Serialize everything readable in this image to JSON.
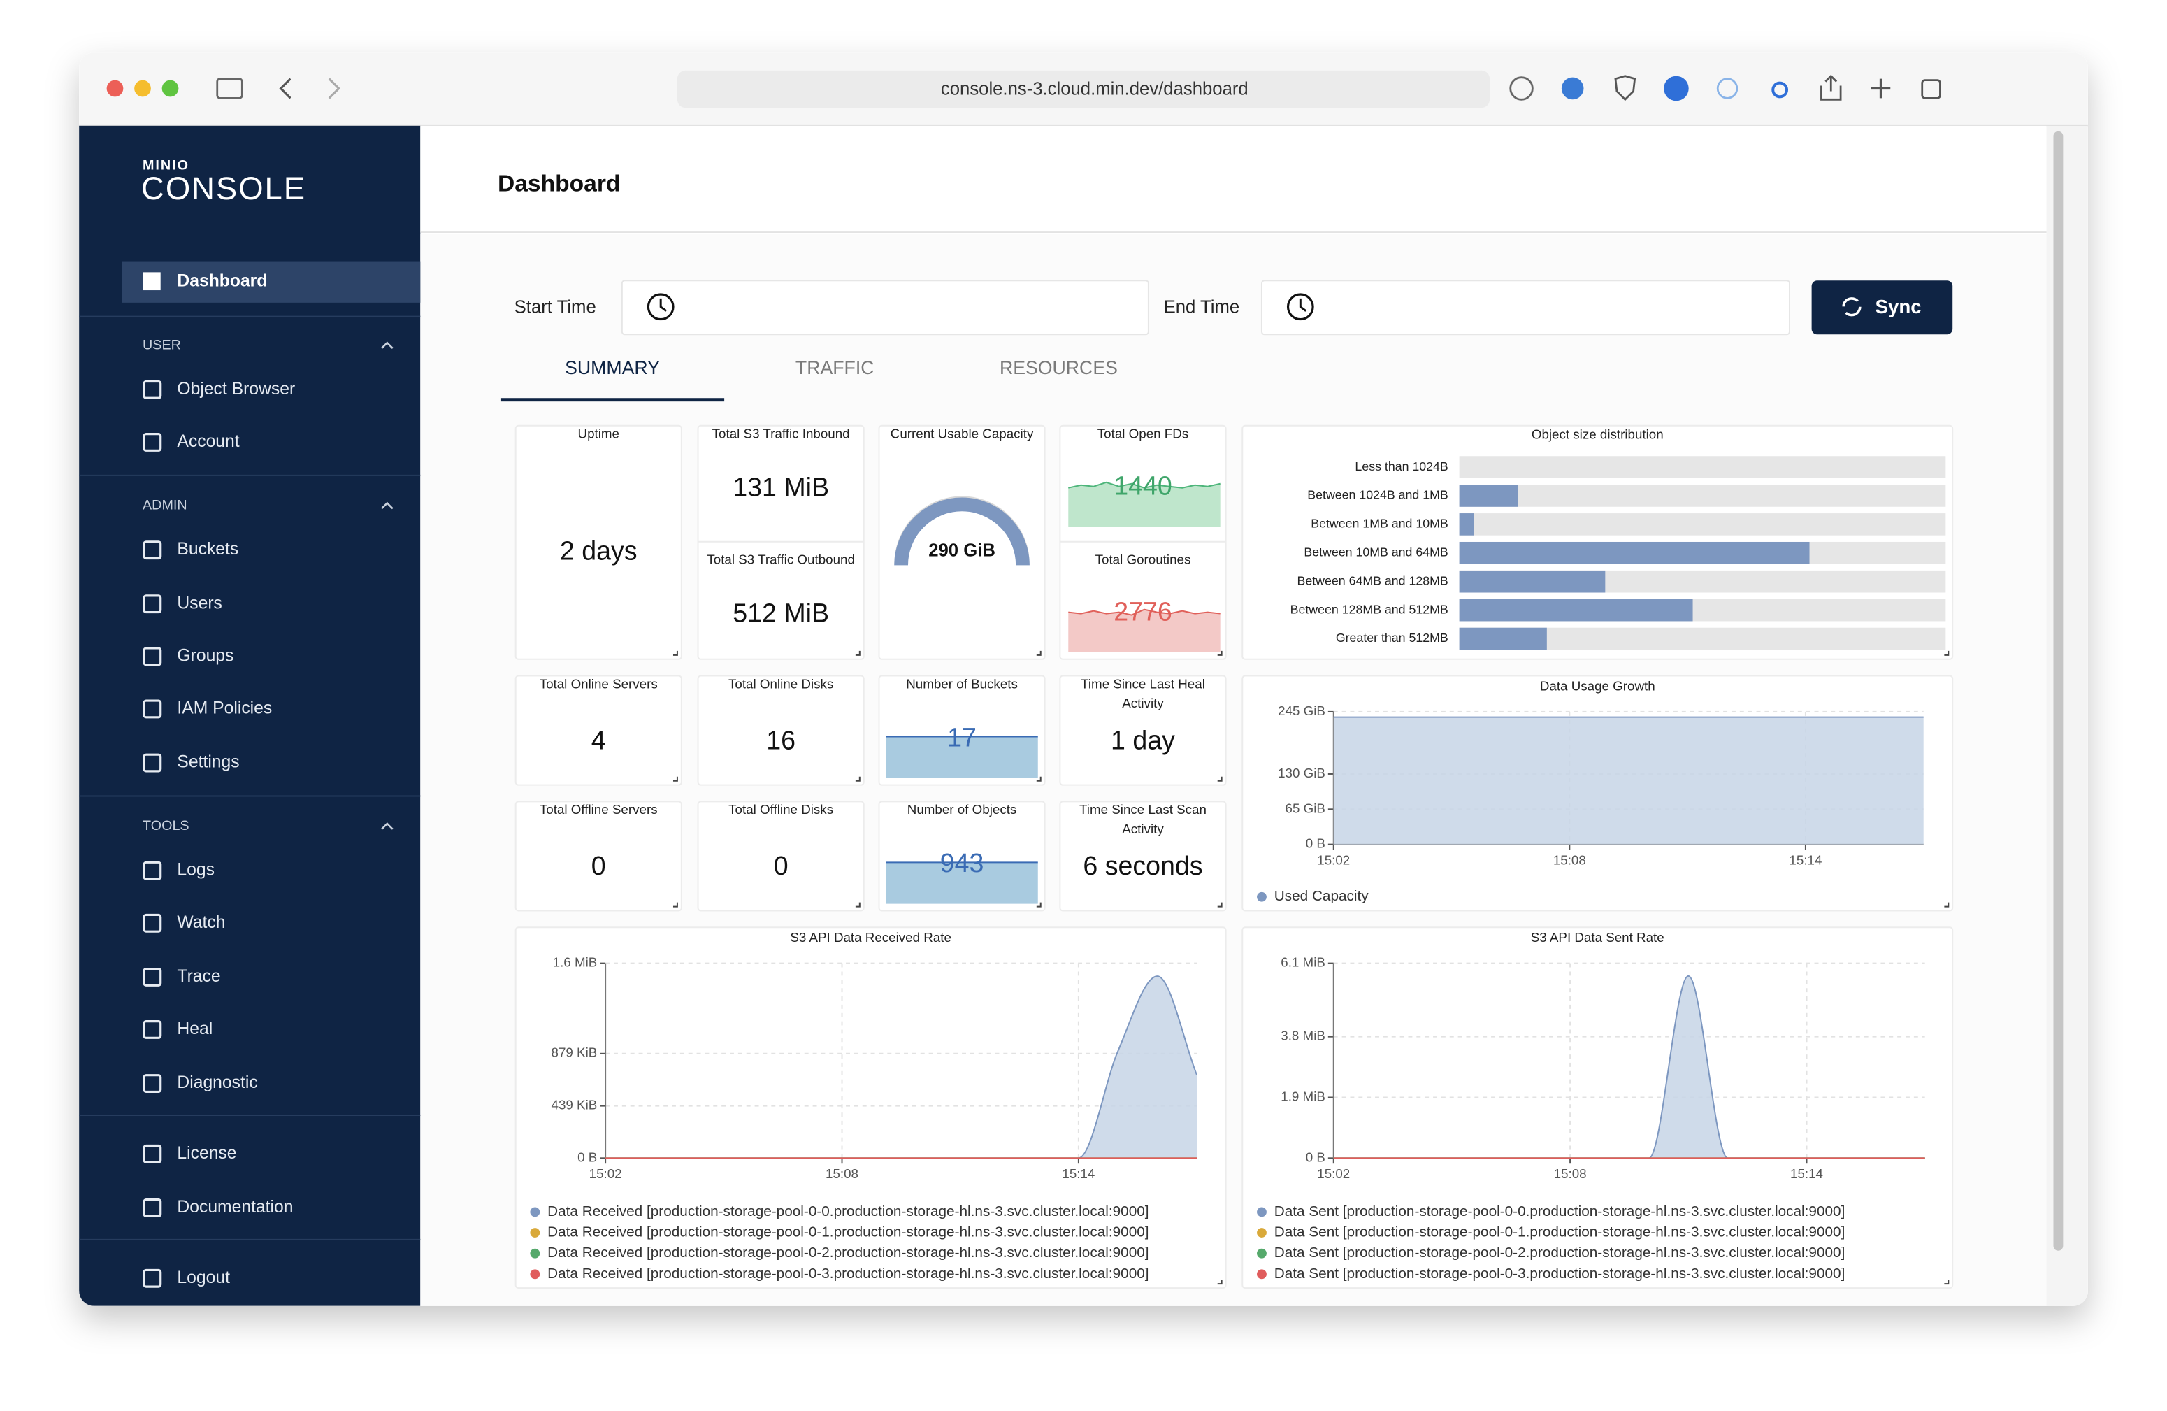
{
  "browser": {
    "url": "console.ns-3.cloud.min.dev/dashboard"
  },
  "sidebar": {
    "logo_brand": "MINIO",
    "logo_product": "CONSOLE",
    "active": "Dashboard",
    "sections": [
      {
        "title": "USER",
        "items": [
          "Object Browser",
          "Account"
        ]
      },
      {
        "title": "ADMIN",
        "items": [
          "Buckets",
          "Users",
          "Groups",
          "IAM Policies",
          "Settings"
        ]
      },
      {
        "title": "TOOLS",
        "items": [
          "Logs",
          "Watch",
          "Trace",
          "Heal",
          "Diagnostic"
        ]
      }
    ],
    "bottom": [
      "License",
      "Documentation"
    ],
    "logout": "Logout"
  },
  "header": {
    "title": "Dashboard"
  },
  "filters": {
    "start_label": "Start Time",
    "end_label": "End Time",
    "sync": "Sync"
  },
  "tabs": {
    "items": [
      "SUMMARY",
      "TRAFFIC",
      "RESOURCES"
    ],
    "active": "SUMMARY"
  },
  "cards": [
    {
      "title": "Uptime",
      "value": "2 days"
    },
    {
      "title": "Total S3 Traffic Inbound",
      "value": "131 MiB"
    },
    {
      "title": "Total S3 Traffic Outbound",
      "value": "512 MiB"
    },
    {
      "title": "Current Usable Capacity",
      "value": "290 GiB"
    },
    {
      "title": "Total Open FDs",
      "value": "1440"
    },
    {
      "title": "Total Goroutines",
      "value": "2776"
    },
    {
      "title": "Total Online Servers",
      "value": "4"
    },
    {
      "title": "Total Online Disks",
      "value": "16"
    },
    {
      "title": "Number of Buckets",
      "value": "17"
    },
    {
      "title": "Time Since Last Heal Activity",
      "value": "1 day"
    },
    {
      "title": "Total Offline Servers",
      "value": "0"
    },
    {
      "title": "Total Offline Disks",
      "value": "0"
    },
    {
      "title": "Number of Objects",
      "value": "943"
    },
    {
      "title": "Time Since Last Scan Activity",
      "value": "6 seconds"
    }
  ],
  "size_distribution": {
    "type": "bar",
    "title": "Object size distribution",
    "categories": [
      "Less than 1024B",
      "Between 1024B and 1MB",
      "Between 1MB and 10MB",
      "Between 10MB and 64MB",
      "Between 64MB and 128MB",
      "Between 128MB and 512MB",
      "Greater than 512MB"
    ],
    "values": [
      0,
      12,
      3,
      72,
      30,
      48,
      18
    ],
    "xlim": [
      0,
      100
    ],
    "color": "#7d97c0"
  },
  "usage_growth": {
    "type": "area",
    "title": "Data Usage Growth",
    "x": [
      "15:02",
      "15:03",
      "15:04",
      "15:05",
      "15:06",
      "15:07",
      "15:08",
      "15:09",
      "15:10",
      "15:11",
      "15:12",
      "15:13",
      "15:14",
      "15:15",
      "15:16",
      "15:17"
    ],
    "xticks": [
      "15:02",
      "15:08",
      "15:14"
    ],
    "ylim": [
      0,
      245
    ],
    "yticks": [
      {
        "value": 0,
        "label": "0 B"
      },
      {
        "value": 65,
        "label": "65 GiB"
      },
      {
        "value": 130,
        "label": "130 GiB"
      },
      {
        "value": 245,
        "label": "245 GiB"
      }
    ],
    "series": [
      {
        "name": "Used Capacity",
        "color": "#7d97c0",
        "values": [
          235,
          235,
          235,
          235,
          235,
          235,
          235,
          235,
          235,
          235,
          235,
          235,
          235,
          235,
          235,
          235
        ]
      }
    ]
  },
  "received_rate": {
    "type": "line",
    "title": "S3 API Data Received Rate",
    "x": [
      "15:02",
      "15:03",
      "15:04",
      "15:05",
      "15:06",
      "15:07",
      "15:08",
      "15:09",
      "15:10",
      "15:11",
      "15:12",
      "15:13",
      "15:14",
      "15:15",
      "15:16",
      "15:17"
    ],
    "xticks": [
      "15:02",
      "15:08",
      "15:14"
    ],
    "ylim": [
      0,
      1638.4
    ],
    "yticks": [
      {
        "value": 0,
        "label": "0 B"
      },
      {
        "value": 439,
        "label": "439 KiB"
      },
      {
        "value": 879,
        "label": "879 KiB"
      },
      {
        "value": 1638.4,
        "label": "1.6 MiB"
      }
    ],
    "series": [
      {
        "name": "Data Received [production-storage-pool-0-0.production-storage-hl.ns-3.svc.cluster.local:9000]",
        "color": "#7d97c0",
        "values": [
          0,
          0,
          0,
          0,
          0,
          0,
          0,
          0,
          0,
          0,
          0,
          0,
          0,
          900,
          1530,
          700
        ]
      },
      {
        "name": "Data Received [production-storage-pool-0-1.production-storage-hl.ns-3.svc.cluster.local:9000]",
        "color": "#d9a93a",
        "values": [
          0,
          0,
          0,
          0,
          0,
          0,
          0,
          0,
          0,
          0,
          0,
          0,
          0,
          0,
          0,
          0
        ]
      },
      {
        "name": "Data Received [production-storage-pool-0-2.production-storage-hl.ns-3.svc.cluster.local:9000]",
        "color": "#55a96b",
        "values": [
          0,
          0,
          0,
          0,
          0,
          0,
          0,
          0,
          0,
          0,
          0,
          0,
          0,
          0,
          0,
          0
        ]
      },
      {
        "name": "Data Received [production-storage-pool-0-3.production-storage-hl.ns-3.svc.cluster.local:9000]",
        "color": "#e05c5c",
        "values": [
          0,
          0,
          0,
          0,
          0,
          0,
          0,
          0,
          0,
          0,
          0,
          0,
          0,
          0,
          0,
          0
        ]
      }
    ]
  },
  "sent_rate": {
    "type": "line",
    "title": "S3 API Data Sent Rate",
    "x": [
      "15:02",
      "15:03",
      "15:04",
      "15:05",
      "15:06",
      "15:07",
      "15:08",
      "15:09",
      "15:10",
      "15:11",
      "15:12",
      "15:13",
      "15:14",
      "15:15",
      "15:16",
      "15:17"
    ],
    "xticks": [
      "15:02",
      "15:08",
      "15:14"
    ],
    "ylim": [
      0,
      6.1
    ],
    "yticks": [
      {
        "value": 0,
        "label": "0 B"
      },
      {
        "value": 1.9,
        "label": "1.9 MiB"
      },
      {
        "value": 3.8,
        "label": "3.8 MiB"
      },
      {
        "value": 6.1,
        "label": "6.1 MiB"
      }
    ],
    "series": [
      {
        "name": "Data Sent [production-storage-pool-0-0.production-storage-hl.ns-3.svc.cluster.local:9000]",
        "color": "#7d97c0",
        "values": [
          0,
          0,
          0,
          0,
          0,
          0,
          0,
          0,
          0,
          5.7,
          0,
          0,
          0,
          0,
          0,
          0
        ]
      },
      {
        "name": "Data Sent [production-storage-pool-0-1.production-storage-hl.ns-3.svc.cluster.local:9000]",
        "color": "#d9a93a",
        "values": [
          0,
          0,
          0,
          0,
          0,
          0,
          0,
          0,
          0,
          0,
          0,
          0,
          0,
          0,
          0,
          0
        ]
      },
      {
        "name": "Data Sent [production-storage-pool-0-2.production-storage-hl.ns-3.svc.cluster.local:9000]",
        "color": "#55a96b",
        "values": [
          0,
          0,
          0,
          0,
          0,
          0,
          0,
          0,
          0,
          0,
          0,
          0,
          0,
          0,
          0,
          0
        ]
      },
      {
        "name": "Data Sent [production-storage-pool-0-3.production-storage-hl.ns-3.svc.cluster.local:9000]",
        "color": "#e05c5c",
        "values": [
          0,
          0,
          0,
          0,
          0,
          0,
          0,
          0,
          0,
          0,
          0,
          0,
          0,
          0,
          0,
          0
        ]
      }
    ]
  }
}
